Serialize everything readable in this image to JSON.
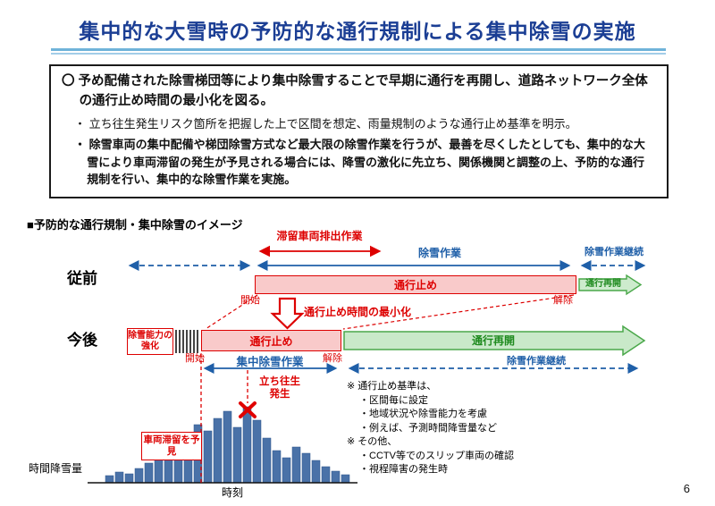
{
  "slide": {
    "title": "集中的な大雪時の予防的な通行規制による集中除雪の実施",
    "page_number": "6"
  },
  "summary": {
    "lead": "〇 予め配備された除雪梯団等により集中除雪することで早期に通行を再開し、道路ネットワーク全体の通行止め時間の最小化を図る。",
    "bullet1": "・ 立ち往生発生リスク箇所を把握した上で区間を想定、雨量規制のような通行止め基準を明示。",
    "bullet2": "・ 除雪車両の集中配備や梯団除雪方式など最大限の除雪作業を行うが、最善を尽くしたとしても、集中的な大雪により車両滞留の発生が予見される場合には、降雪の激化に先立ち、関係機関と調整の上、予防的な通行規制を行い、集中的な除雪作業を実施。"
  },
  "diagram": {
    "heading": "■予防的な通行規制・集中除雪のイメージ",
    "before_label": "従前",
    "after_label": "今後",
    "stranded_discharge_work": "滞留車両排出作業",
    "snow_removal_work": "除雪作業",
    "snow_removal_continue_top": "除雪作業継続",
    "road_closed_before": "通行止め",
    "reopen_before": "通行再開",
    "start_before": "開始",
    "release_before": "解除",
    "minimize_label": "通行止め時間の最小化",
    "capacity_box": "除雪能力の強化",
    "road_closed_after": "通行止め",
    "reopen_after": "通行再開",
    "start_after": "開始",
    "release_after": "解除",
    "intensive_removal": "集中除雪作業",
    "snow_removal_continue_bottom": "除雪作業継続",
    "stuck_label": "立ち往生発生",
    "congestion_box": "車両滞留を予見",
    "notes": [
      "※ 通行止め基準は、",
      "・区間毎に設定",
      "・地域状況や除雪能力を考慮",
      "・例えば、予測時間降雪量など",
      "※ その他、",
      "・CCTV等でのスリップ車両の確認",
      "・視程障害の発生時"
    ]
  },
  "chart_data": {
    "type": "bar",
    "xlabel": "時刻",
    "ylabel": "時間降雪量",
    "values": [
      8,
      12,
      10,
      16,
      22,
      30,
      26,
      40,
      55,
      65,
      58,
      72,
      80,
      62,
      85,
      70,
      50,
      36,
      28,
      40,
      33,
      25,
      18,
      13,
      9
    ],
    "note": "相対値（目盛り表示なし）"
  },
  "colors": {
    "title_blue": "#1b3e94",
    "accent_red": "#dd0000",
    "accent_blue": "#1f5fa8",
    "accent_green": "#1e8a1e",
    "bar_blue": "#4a72a8",
    "closed_fill": "#f9caca",
    "reopen_fill": "#c9e9c9"
  }
}
